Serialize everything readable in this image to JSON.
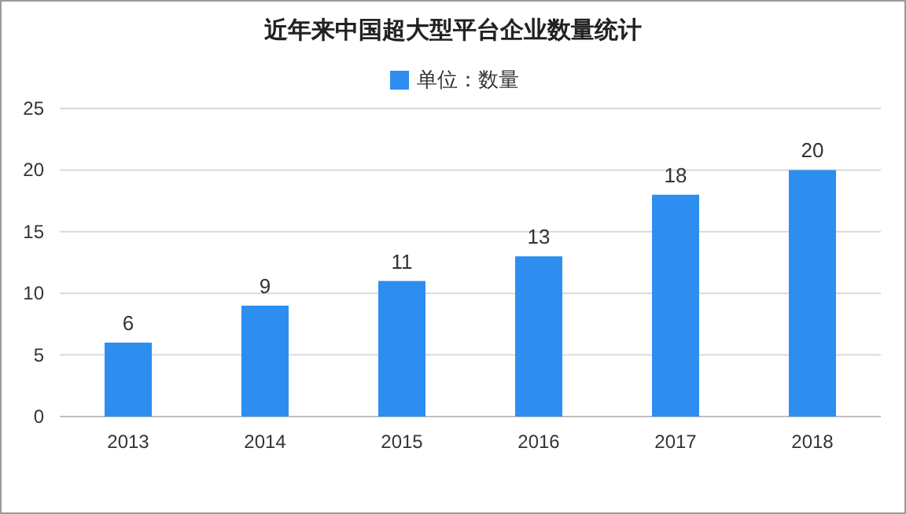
{
  "chart_data": {
    "type": "bar",
    "title": "近年来中国超大型平台企业数量统计",
    "categories": [
      "2013",
      "2014",
      "2015",
      "2016",
      "2017",
      "2018"
    ],
    "series": [
      {
        "name": "单位：数量",
        "color": "#2e8ef0",
        "values": [
          6,
          9,
          11,
          13,
          18,
          20
        ]
      }
    ],
    "ylim": [
      0,
      25
    ],
    "yticks": [
      0,
      5,
      10,
      15,
      20,
      25
    ],
    "grid": "y",
    "legend": "top",
    "data_labels": true
  }
}
